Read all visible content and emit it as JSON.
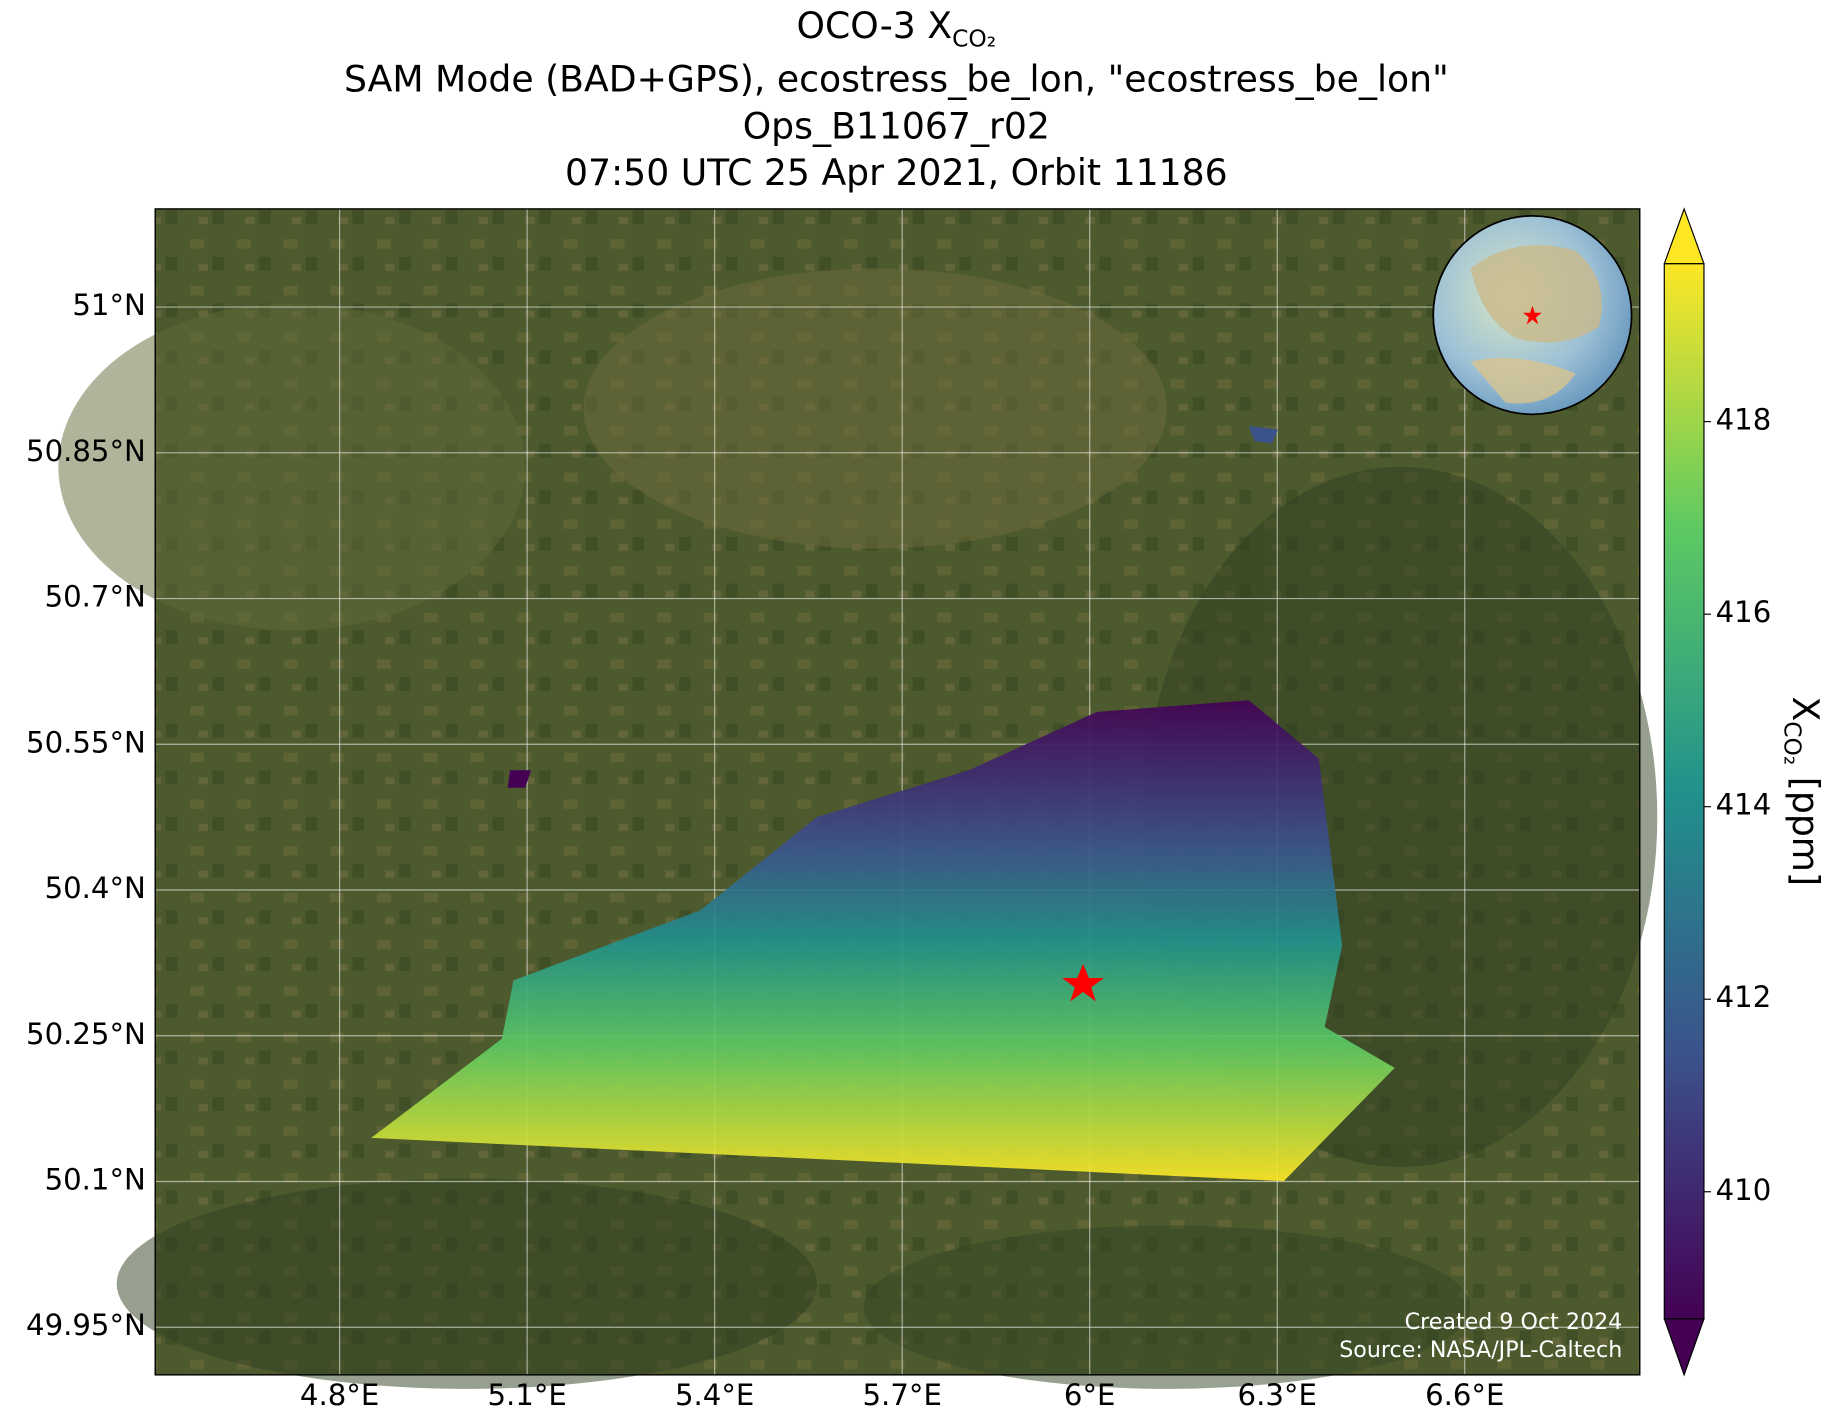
{
  "title": {
    "text": "OCO-3 X",
    "subscript": "CO₂"
  },
  "subtitle_lines": [
    "SAM Mode (BAD+GPS), ecostress_be_lon, \"ecostress_be_lon\"",
    "Ops_B11067_r02",
    "07:50 UTC 25 Apr 2021, Orbit 11186"
  ],
  "map": {
    "xlim": [
      4.505,
      6.88
    ],
    "ylim": [
      49.901,
      51.101
    ],
    "xticks": [
      {
        "value": 4.8,
        "label": "4.8°E"
      },
      {
        "value": 5.1,
        "label": "5.1°E"
      },
      {
        "value": 5.4,
        "label": "5.4°E"
      },
      {
        "value": 5.7,
        "label": "5.7°E"
      },
      {
        "value": 6,
        "label": "6°E"
      },
      {
        "value": 6.3,
        "label": "6.3°E"
      },
      {
        "value": 6.6,
        "label": "6.6°E"
      }
    ],
    "yticks": [
      {
        "value": 49.95,
        "label": "49.95°N"
      },
      {
        "value": 50.1,
        "label": "50.1°N"
      },
      {
        "value": 50.25,
        "label": "50.25°N"
      },
      {
        "value": 50.4,
        "label": "50.4°N"
      },
      {
        "value": 50.55,
        "label": "50.55°N"
      },
      {
        "value": 50.7,
        "label": "50.7°N"
      },
      {
        "value": 50.85,
        "label": "50.85°N"
      },
      {
        "value": 51,
        "label": "51°N"
      }
    ],
    "grid": true
  },
  "colorbar": {
    "label": {
      "text": "X",
      "subscript": "CO₂",
      "unit": " [ppm]"
    },
    "lim": [
      408.68,
      419.64
    ],
    "ticks": [
      410,
      412,
      414,
      416,
      418
    ]
  },
  "credits": [
    "Created 9 Oct 2024",
    "Source: NASA/JPL-Caltech"
  ]
}
